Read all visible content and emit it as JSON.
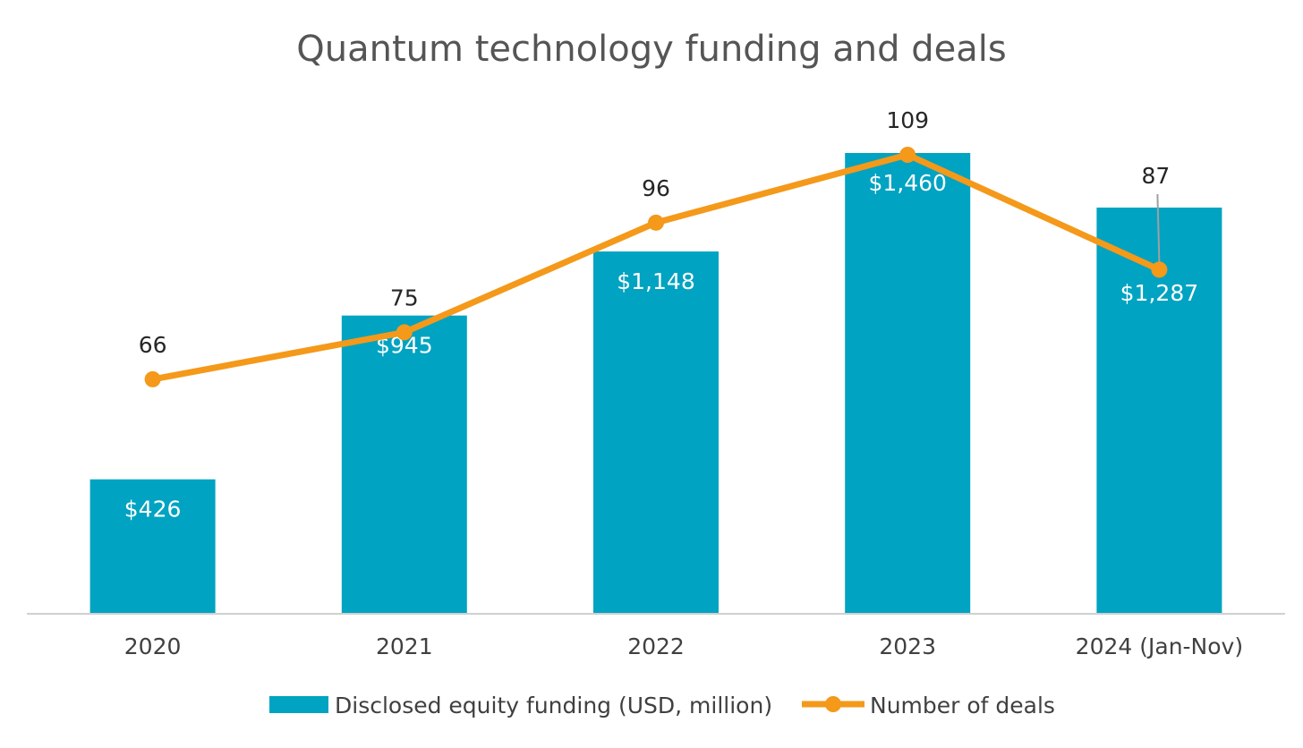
{
  "chart_data": {
    "type": "bar",
    "title": "Quantum technology funding and deals",
    "categories": [
      "2020",
      "2021",
      "2022",
      "2023",
      "2024 (Jan-Nov)"
    ],
    "series": [
      {
        "name": "Disclosed equity funding (USD, million)",
        "type": "bar",
        "axis": "left",
        "values": [
          426,
          945,
          1148,
          1460,
          1287
        ],
        "labels": [
          "$426",
          "$945",
          "$1,148",
          "$1,460",
          "$1,287"
        ],
        "color": "#00A3C1"
      },
      {
        "name": "Number of deals",
        "type": "line",
        "axis": "right",
        "values": [
          66,
          75,
          96,
          109,
          87
        ],
        "labels": [
          "66",
          "75",
          "96",
          "109",
          "87"
        ],
        "color": "#F4991A"
      }
    ],
    "ylim_left": [
      0,
      1460
    ],
    "ylim_right": [
      30,
      109
    ],
    "grid": false,
    "legend_position": "bottom",
    "colors": {
      "axis": "#d0d0d0",
      "leader": "#a0a0a0"
    }
  }
}
